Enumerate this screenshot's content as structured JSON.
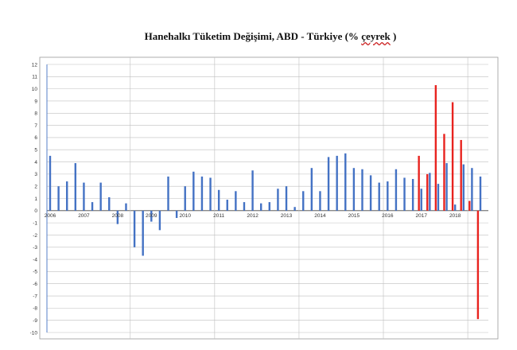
{
  "chart_data": {
    "type": "bar",
    "title_main": "Hanehalkı Tüketim Değişimi, ABD - Türkiye (% ",
    "title_underlined": "çeyrek",
    "title_end": " )",
    "xlabel": "",
    "ylabel": "",
    "ylim": [
      -10,
      12
    ],
    "yticks": [
      12,
      11,
      10,
      9,
      8,
      7,
      6,
      5,
      4,
      3,
      2,
      1,
      0,
      -1,
      -2,
      -3,
      -4,
      -5,
      -6,
      -7,
      -8,
      -9,
      -10
    ],
    "grid": true,
    "year_labels": [
      {
        "label": "2006",
        "index": 0
      },
      {
        "label": "2007",
        "index": 4
      },
      {
        "label": "2008",
        "index": 8
      },
      {
        "label": "2009",
        "index": 12
      },
      {
        "label": "2010",
        "index": 16
      },
      {
        "label": "2011",
        "index": 20
      },
      {
        "label": "2012",
        "index": 24
      },
      {
        "label": "2013",
        "index": 28
      },
      {
        "label": "2014",
        "index": 32
      },
      {
        "label": "2015",
        "index": 36
      },
      {
        "label": "2016",
        "index": 40
      },
      {
        "label": "2017",
        "index": 44
      },
      {
        "label": "2018",
        "index": 48
      }
    ],
    "series": [
      {
        "color": "#4472c4",
        "values": [
          4.5,
          2.0,
          2.4,
          3.9,
          2.3,
          0.7,
          2.3,
          1.1,
          -1.1,
          0.6,
          -3.0,
          -3.7,
          -0.9,
          -1.6,
          2.8,
          -0.6,
          2.0,
          3.2,
          2.8,
          2.7,
          1.7,
          0.9,
          1.6,
          0.7,
          3.3,
          0.6,
          0.7,
          1.8,
          2.0,
          0.3,
          1.6,
          3.5,
          1.6,
          4.4,
          4.5,
          4.7,
          3.5,
          3.4,
          2.9,
          2.3,
          2.4,
          3.4,
          2.7,
          2.6,
          1.8,
          3.1,
          2.2,
          3.9,
          0.5,
          3.8,
          3.5,
          2.8
        ]
      },
      {
        "color": "#e8231f",
        "points": [
          {
            "index": 44,
            "value": 4.5
          },
          {
            "index": 45,
            "value": 3.0
          },
          {
            "index": 46,
            "value": 10.3
          },
          {
            "index": 47,
            "value": 6.3
          },
          {
            "index": 48,
            "value": 8.9
          },
          {
            "index": 49,
            "value": 5.8
          },
          {
            "index": 50,
            "value": 0.8
          },
          {
            "index": 51,
            "value": -8.9
          }
        ]
      }
    ]
  }
}
